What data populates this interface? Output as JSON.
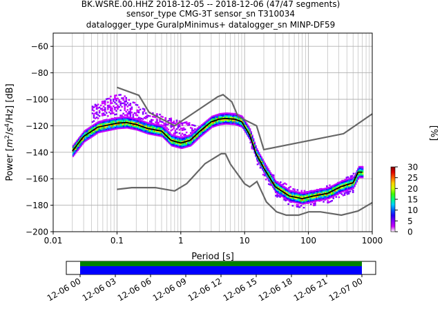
{
  "chart_data": {
    "type": "heatmap",
    "title_lines": [
      "BK.WSRE.00.HHZ   2018-12-05 -- 2018-12-06  (47/47 segments)",
      "sensor_type CMG-3T sensor_sn T310034",
      "datalogger_type GuralpMinimus+ datalogger_sn MINP-DF59"
    ],
    "xlabel": "Period [s]",
    "ylabel_parts": [
      "Power [",
      "m",
      "2",
      "/",
      "s",
      "4",
      "/Hz] [dB]"
    ],
    "x_scale": "log",
    "xlim": [
      0.01,
      1000
    ],
    "ylim": [
      -200,
      -50
    ],
    "x_ticks": [
      0.01,
      0.1,
      1,
      10,
      100,
      1000
    ],
    "x_tick_labels": [
      "0.01",
      "0.1",
      "1",
      "10",
      "100",
      "1000"
    ],
    "y_ticks": [
      -200,
      -180,
      -160,
      -140,
      -120,
      -100,
      -80,
      -60
    ],
    "y_tick_labels": [
      "−200",
      "−180",
      "−160",
      "−140",
      "−120",
      "−100",
      "−80",
      "−60"
    ],
    "grid": true,
    "colorbar": {
      "label": "[%]",
      "range": [
        0,
        30
      ],
      "ticks": [
        0,
        5,
        10,
        15,
        20,
        25,
        30
      ],
      "tick_labels": [
        "0",
        "5",
        "10",
        "15",
        "20",
        "25",
        "30"
      ],
      "colormap": [
        "#ffffff",
        "#c800ff",
        "#8000ff",
        "#2000ff",
        "#0060ff",
        "#00d0ff",
        "#00ff80",
        "#40ff00",
        "#d0ff00",
        "#ffd000",
        "#ff6000",
        "#e00000",
        "#800000"
      ]
    },
    "noise_models": [
      {
        "name": "NHNM",
        "color": "#666666",
        "points": [
          [
            0.1,
            -91
          ],
          [
            0.22,
            -97
          ],
          [
            0.32,
            -110
          ],
          [
            0.8,
            -120
          ],
          [
            3.8,
            -98
          ],
          [
            4.6,
            -96.5
          ],
          [
            6.3,
            -102
          ],
          [
            7.9,
            -113
          ],
          [
            15.4,
            -120
          ],
          [
            20,
            -138
          ],
          [
            354.8,
            -126
          ],
          [
            1000,
            -111
          ]
        ]
      },
      {
        "name": "NLNM",
        "color": "#666666",
        "points": [
          [
            0.1,
            -168
          ],
          [
            0.17,
            -166.7
          ],
          [
            0.4,
            -166.7
          ],
          [
            0.8,
            -169.2
          ],
          [
            1.24,
            -163.7
          ],
          [
            2.4,
            -148.6
          ],
          [
            4.3,
            -141.1
          ],
          [
            5,
            -141.1
          ],
          [
            6,
            -149
          ],
          [
            10,
            -163.8
          ],
          [
            12,
            -166.2
          ],
          [
            15.6,
            -162.1
          ],
          [
            21.9,
            -177.5
          ],
          [
            31.6,
            -185
          ],
          [
            45,
            -187.5
          ],
          [
            70,
            -187.5
          ],
          [
            101,
            -185
          ],
          [
            154,
            -185
          ],
          [
            328,
            -187.5
          ],
          [
            600,
            -184.4
          ],
          [
            1000,
            -178
          ]
        ]
      }
    ],
    "mode_line": {
      "color": "#000000",
      "points": [
        [
          0.02,
          -139
        ],
        [
          0.03,
          -128
        ],
        [
          0.05,
          -121
        ],
        [
          0.1,
          -118
        ],
        [
          0.14,
          -117.5
        ],
        [
          0.2,
          -119
        ],
        [
          0.3,
          -122
        ],
        [
          0.5,
          -124
        ],
        [
          0.7,
          -131
        ],
        [
          1,
          -133
        ],
        [
          1.4,
          -131
        ],
        [
          2,
          -124
        ],
        [
          3,
          -117
        ],
        [
          4,
          -115
        ],
        [
          5,
          -114.5
        ],
        [
          7,
          -115
        ],
        [
          9,
          -117
        ],
        [
          12,
          -127
        ],
        [
          15,
          -141
        ],
        [
          20,
          -152
        ],
        [
          30,
          -166
        ],
        [
          50,
          -173
        ],
        [
          80,
          -175
        ],
        [
          120,
          -173
        ],
        [
          200,
          -171
        ],
        [
          320,
          -166
        ],
        [
          500,
          -163
        ],
        [
          600,
          -155
        ],
        [
          700,
          -155
        ]
      ]
    },
    "histogram_band": {
      "core_spread_db": 4,
      "sparse_points": [
        [
          0.04,
          -104
        ],
        [
          0.06,
          -100
        ],
        [
          0.08,
          -96
        ],
        [
          0.1,
          -95
        ],
        [
          0.14,
          -97
        ],
        [
          0.2,
          -103
        ],
        [
          0.3,
          -108
        ],
        [
          12,
          -130
        ],
        [
          15,
          -140
        ],
        [
          20,
          -150
        ],
        [
          30,
          -158
        ],
        [
          50,
          -165
        ],
        [
          80,
          -168
        ],
        [
          120,
          -168
        ],
        [
          200,
          -164
        ],
        [
          320,
          -160
        ],
        [
          500,
          -155
        ]
      ]
    },
    "time_axis": {
      "tick_labels": [
        "12-06 00",
        "12-06 03",
        "12-06 06",
        "12-06 09",
        "12-06 12",
        "12-06 15",
        "12-06 18",
        "12-06 21",
        "12-07 00"
      ],
      "bar_colors": {
        "top": "#008000",
        "bottom": "#0000ff"
      }
    }
  }
}
